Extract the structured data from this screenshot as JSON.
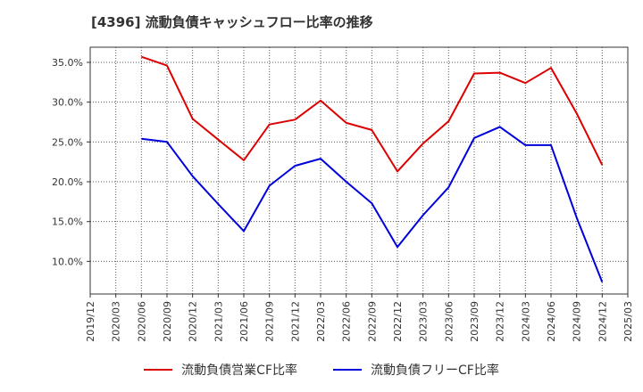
{
  "title": "[4396]  流動負債キャッシュフロー比率の推移",
  "chart_data": {
    "type": "line",
    "title": "[4396]  流動負債キャッシュフロー比率の推移",
    "xlabel": "",
    "ylabel": "",
    "categories": [
      "2019/12",
      "2020/03",
      "2020/06",
      "2020/09",
      "2020/12",
      "2021/03",
      "2021/06",
      "2021/09",
      "2021/12",
      "2022/03",
      "2022/06",
      "2022/09",
      "2022/12",
      "2023/03",
      "2023/06",
      "2023/09",
      "2023/12",
      "2024/03",
      "2024/06",
      "2024/09",
      "2024/12",
      "2025/03"
    ],
    "ylim": [
      5.9,
      36.9
    ],
    "yticks": [
      10,
      15,
      20,
      25,
      30,
      35
    ],
    "ytick_labels": [
      "10.0%",
      "15.0%",
      "20.0%",
      "25.0%",
      "30.0%",
      "35.0%"
    ],
    "grid": true,
    "legend_position": "bottom",
    "series": [
      {
        "name": "流動負債営業CF比率",
        "color": "#dd0000",
        "values": [
          null,
          null,
          35.7,
          34.6,
          27.9,
          25.3,
          22.7,
          27.2,
          27.8,
          30.2,
          27.4,
          26.5,
          21.3,
          24.8,
          27.6,
          33.6,
          33.7,
          32.4,
          34.3,
          28.6,
          22.1,
          null
        ]
      },
      {
        "name": "流動負債フリーCF比率",
        "color": "#0000dd",
        "values": [
          null,
          null,
          25.4,
          25.0,
          20.7,
          17.2,
          13.8,
          19.5,
          22.0,
          22.9,
          20.0,
          17.3,
          11.8,
          15.8,
          19.3,
          25.5,
          26.9,
          24.6,
          24.6,
          15.5,
          7.4,
          null
        ]
      }
    ]
  }
}
